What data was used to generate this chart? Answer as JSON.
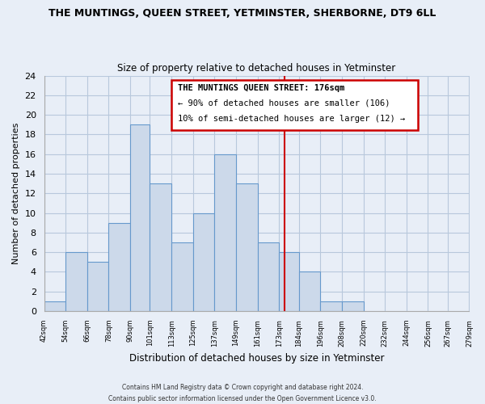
{
  "title": "THE MUNTINGS, QUEEN STREET, YETMINSTER, SHERBORNE, DT9 6LL",
  "subtitle": "Size of property relative to detached houses in Yetminster",
  "xlabel": "Distribution of detached houses by size in Yetminster",
  "ylabel": "Number of detached properties",
  "bin_edges": [
    42,
    54,
    66,
    78,
    90,
    101,
    113,
    125,
    137,
    149,
    161,
    173,
    184,
    196,
    208,
    220,
    232,
    244,
    256,
    267,
    279
  ],
  "bin_labels": [
    "42sqm",
    "54sqm",
    "66sqm",
    "78sqm",
    "90sqm",
    "101sqm",
    "113sqm",
    "125sqm",
    "137sqm",
    "149sqm",
    "161sqm",
    "173sqm",
    "184sqm",
    "196sqm",
    "208sqm",
    "220sqm",
    "232sqm",
    "244sqm",
    "256sqm",
    "267sqm",
    "279sqm"
  ],
  "counts": [
    1,
    6,
    5,
    9,
    19,
    13,
    7,
    10,
    16,
    13,
    7,
    6,
    4,
    1,
    1,
    0,
    0,
    0,
    0,
    0
  ],
  "bar_color": "#ccd9ea",
  "bar_edge_color": "#6699cc",
  "marker_value": 176,
  "marker_color": "#cc0000",
  "ylim": [
    0,
    24
  ],
  "yticks": [
    0,
    2,
    4,
    6,
    8,
    10,
    12,
    14,
    16,
    18,
    20,
    22,
    24
  ],
  "annotation_title": "THE MUNTINGS QUEEN STREET: 176sqm",
  "annotation_line1": "← 90% of detached houses are smaller (106)",
  "annotation_line2": "10% of semi-detached houses are larger (12) →",
  "footer1": "Contains HM Land Registry data © Crown copyright and database right 2024.",
  "footer2": "Contains public sector information licensed under the Open Government Licence v3.0.",
  "bg_color": "#e8eef7",
  "plot_bg_color": "#e8eef7",
  "grid_color": "#b8c8dc"
}
